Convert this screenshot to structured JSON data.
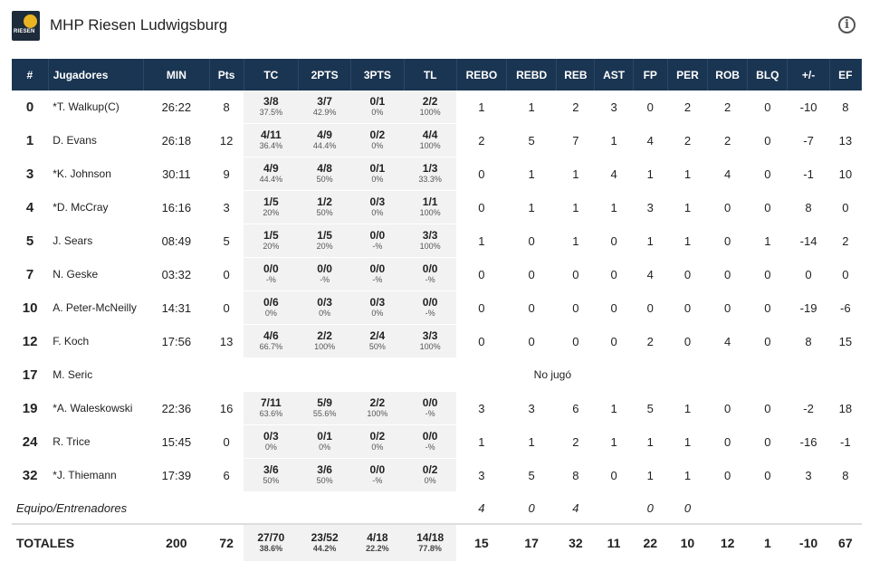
{
  "team": {
    "name": "MHP Riesen Ludwigsburg",
    "logo_text": "RIESEN"
  },
  "columns": [
    "#",
    "Jugadores",
    "MIN",
    "Pts",
    "TC",
    "2PTS",
    "3PTS",
    "TL",
    "REBO",
    "REBD",
    "REB",
    "AST",
    "FP",
    "PER",
    "ROB",
    "BLQ",
    "+/-",
    "EF"
  ],
  "players": [
    {
      "num": "0",
      "name": "*T. Walkup(C)",
      "min": "26:22",
      "pts": "8",
      "tc": "3/8",
      "tc_pct": "37.5%",
      "p2": "3/7",
      "p2_pct": "42.9%",
      "p3": "0/1",
      "p3_pct": "0%",
      "tl": "2/2",
      "tl_pct": "100%",
      "rebo": "1",
      "rebd": "1",
      "reb": "2",
      "ast": "3",
      "fp": "0",
      "per": "2",
      "rob": "2",
      "blq": "0",
      "pm": "-10",
      "ef": "8"
    },
    {
      "num": "1",
      "name": "D. Evans",
      "min": "26:18",
      "pts": "12",
      "tc": "4/11",
      "tc_pct": "36.4%",
      "p2": "4/9",
      "p2_pct": "44.4%",
      "p3": "0/2",
      "p3_pct": "0%",
      "tl": "4/4",
      "tl_pct": "100%",
      "rebo": "2",
      "rebd": "5",
      "reb": "7",
      "ast": "1",
      "fp": "4",
      "per": "2",
      "rob": "2",
      "blq": "0",
      "pm": "-7",
      "ef": "13"
    },
    {
      "num": "3",
      "name": "*K. Johnson",
      "min": "30:11",
      "pts": "9",
      "tc": "4/9",
      "tc_pct": "44.4%",
      "p2": "4/8",
      "p2_pct": "50%",
      "p3": "0/1",
      "p3_pct": "0%",
      "tl": "1/3",
      "tl_pct": "33.3%",
      "rebo": "0",
      "rebd": "1",
      "reb": "1",
      "ast": "4",
      "fp": "1",
      "per": "1",
      "rob": "4",
      "blq": "0",
      "pm": "-1",
      "ef": "10"
    },
    {
      "num": "4",
      "name": "*D. McCray",
      "min": "16:16",
      "pts": "3",
      "tc": "1/5",
      "tc_pct": "20%",
      "p2": "1/2",
      "p2_pct": "50%",
      "p3": "0/3",
      "p3_pct": "0%",
      "tl": "1/1",
      "tl_pct": "100%",
      "rebo": "0",
      "rebd": "1",
      "reb": "1",
      "ast": "1",
      "fp": "3",
      "per": "1",
      "rob": "0",
      "blq": "0",
      "pm": "8",
      "ef": "0"
    },
    {
      "num": "5",
      "name": "J. Sears",
      "min": "08:49",
      "pts": "5",
      "tc": "1/5",
      "tc_pct": "20%",
      "p2": "1/5",
      "p2_pct": "20%",
      "p3": "0/0",
      "p3_pct": "-%",
      "tl": "3/3",
      "tl_pct": "100%",
      "rebo": "1",
      "rebd": "0",
      "reb": "1",
      "ast": "0",
      "fp": "1",
      "per": "1",
      "rob": "0",
      "blq": "1",
      "pm": "-14",
      "ef": "2"
    },
    {
      "num": "7",
      "name": "N. Geske",
      "min": "03:32",
      "pts": "0",
      "tc": "0/0",
      "tc_pct": "-%",
      "p2": "0/0",
      "p2_pct": "-%",
      "p3": "0/0",
      "p3_pct": "-%",
      "tl": "0/0",
      "tl_pct": "-%",
      "rebo": "0",
      "rebd": "0",
      "reb": "0",
      "ast": "0",
      "fp": "4",
      "per": "0",
      "rob": "0",
      "blq": "0",
      "pm": "0",
      "ef": "0"
    },
    {
      "num": "10",
      "name": "A. Peter-McNeilly",
      "min": "14:31",
      "pts": "0",
      "tc": "0/6",
      "tc_pct": "0%",
      "p2": "0/3",
      "p2_pct": "0%",
      "p3": "0/3",
      "p3_pct": "0%",
      "tl": "0/0",
      "tl_pct": "-%",
      "rebo": "0",
      "rebd": "0",
      "reb": "0",
      "ast": "0",
      "fp": "0",
      "per": "0",
      "rob": "0",
      "blq": "0",
      "pm": "-19",
      "ef": "-6"
    },
    {
      "num": "12",
      "name": "F. Koch",
      "min": "17:56",
      "pts": "13",
      "tc": "4/6",
      "tc_pct": "66.7%",
      "p2": "2/2",
      "p2_pct": "100%",
      "p3": "2/4",
      "p3_pct": "50%",
      "tl": "3/3",
      "tl_pct": "100%",
      "rebo": "0",
      "rebd": "0",
      "reb": "0",
      "ast": "0",
      "fp": "2",
      "per": "0",
      "rob": "4",
      "blq": "0",
      "pm": "8",
      "ef": "15"
    },
    {
      "num": "17",
      "name": "M. Seric",
      "dnp": "No jugó"
    },
    {
      "num": "19",
      "name": "*A. Waleskowski",
      "min": "22:36",
      "pts": "16",
      "tc": "7/11",
      "tc_pct": "63.6%",
      "p2": "5/9",
      "p2_pct": "55.6%",
      "p3": "2/2",
      "p3_pct": "100%",
      "tl": "0/0",
      "tl_pct": "-%",
      "rebo": "3",
      "rebd": "3",
      "reb": "6",
      "ast": "1",
      "fp": "5",
      "per": "1",
      "rob": "0",
      "blq": "0",
      "pm": "-2",
      "ef": "18"
    },
    {
      "num": "24",
      "name": "R. Trice",
      "min": "15:45",
      "pts": "0",
      "tc": "0/3",
      "tc_pct": "0%",
      "p2": "0/1",
      "p2_pct": "0%",
      "p3": "0/2",
      "p3_pct": "0%",
      "tl": "0/0",
      "tl_pct": "-%",
      "rebo": "1",
      "rebd": "1",
      "reb": "2",
      "ast": "1",
      "fp": "1",
      "per": "1",
      "rob": "0",
      "blq": "0",
      "pm": "-16",
      "ef": "-1"
    },
    {
      "num": "32",
      "name": "*J. Thiemann",
      "min": "17:39",
      "pts": "6",
      "tc": "3/6",
      "tc_pct": "50%",
      "p2": "3/6",
      "p2_pct": "50%",
      "p3": "0/0",
      "p3_pct": "-%",
      "tl": "0/2",
      "tl_pct": "0%",
      "rebo": "3",
      "rebd": "5",
      "reb": "8",
      "ast": "0",
      "fp": "1",
      "per": "1",
      "rob": "0",
      "blq": "0",
      "pm": "3",
      "ef": "8"
    }
  ],
  "equipo": {
    "label": "Equipo/Entrenadores",
    "rebo": "4",
    "rebd": "0",
    "reb": "4",
    "fp": "0",
    "per": "0"
  },
  "totals": {
    "label": "TOTALES",
    "min": "200",
    "pts": "72",
    "tc": "27/70",
    "tc_pct": "38.6%",
    "p2": "23/52",
    "p2_pct": "44.2%",
    "p3": "4/18",
    "p3_pct": "22.2%",
    "tl": "14/18",
    "tl_pct": "77.8%",
    "rebo": "15",
    "rebd": "17",
    "reb": "32",
    "ast": "11",
    "fp": "22",
    "per": "10",
    "rob": "12",
    "blq": "1",
    "pm": "-10",
    "ef": "67"
  }
}
